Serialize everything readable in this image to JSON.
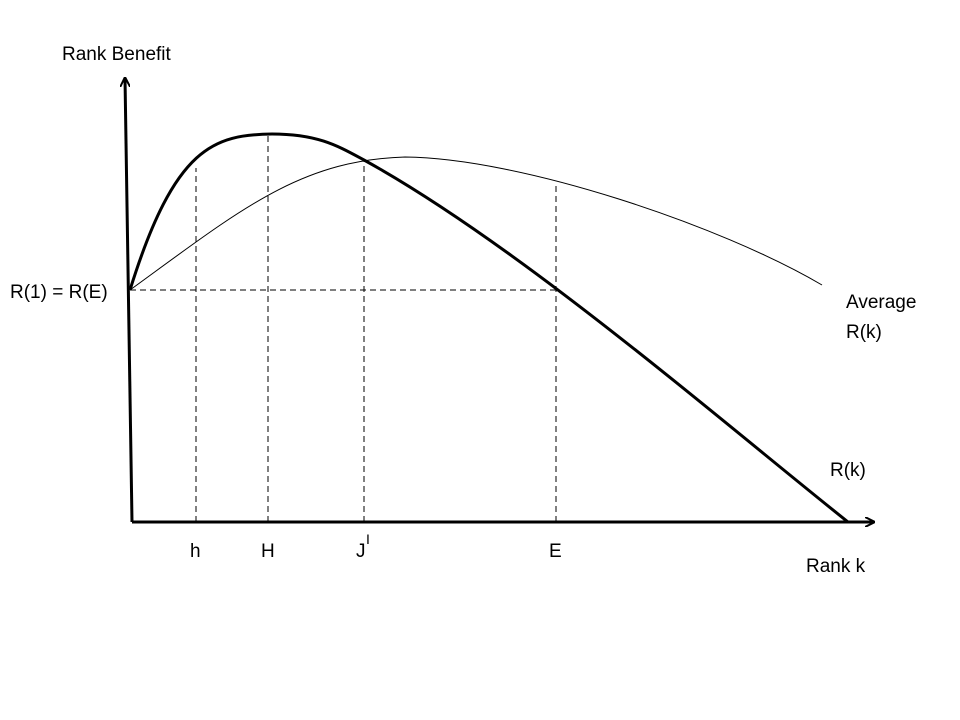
{
  "diagram": {
    "y_axis_label": "Rank Benefit",
    "x_axis_label": "Rank k",
    "y_marker_label": "R(1) = R(E)",
    "curves": {
      "average_label_line1": "Average",
      "average_label_line2": "R(k)",
      "marginal_label": "R(k)"
    },
    "x_markers": {
      "h": "h",
      "H": "H",
      "J": "J",
      "J_superscript": "I",
      "E": "E"
    },
    "colors": {
      "line": "#000000",
      "background": "#ffffff"
    }
  }
}
